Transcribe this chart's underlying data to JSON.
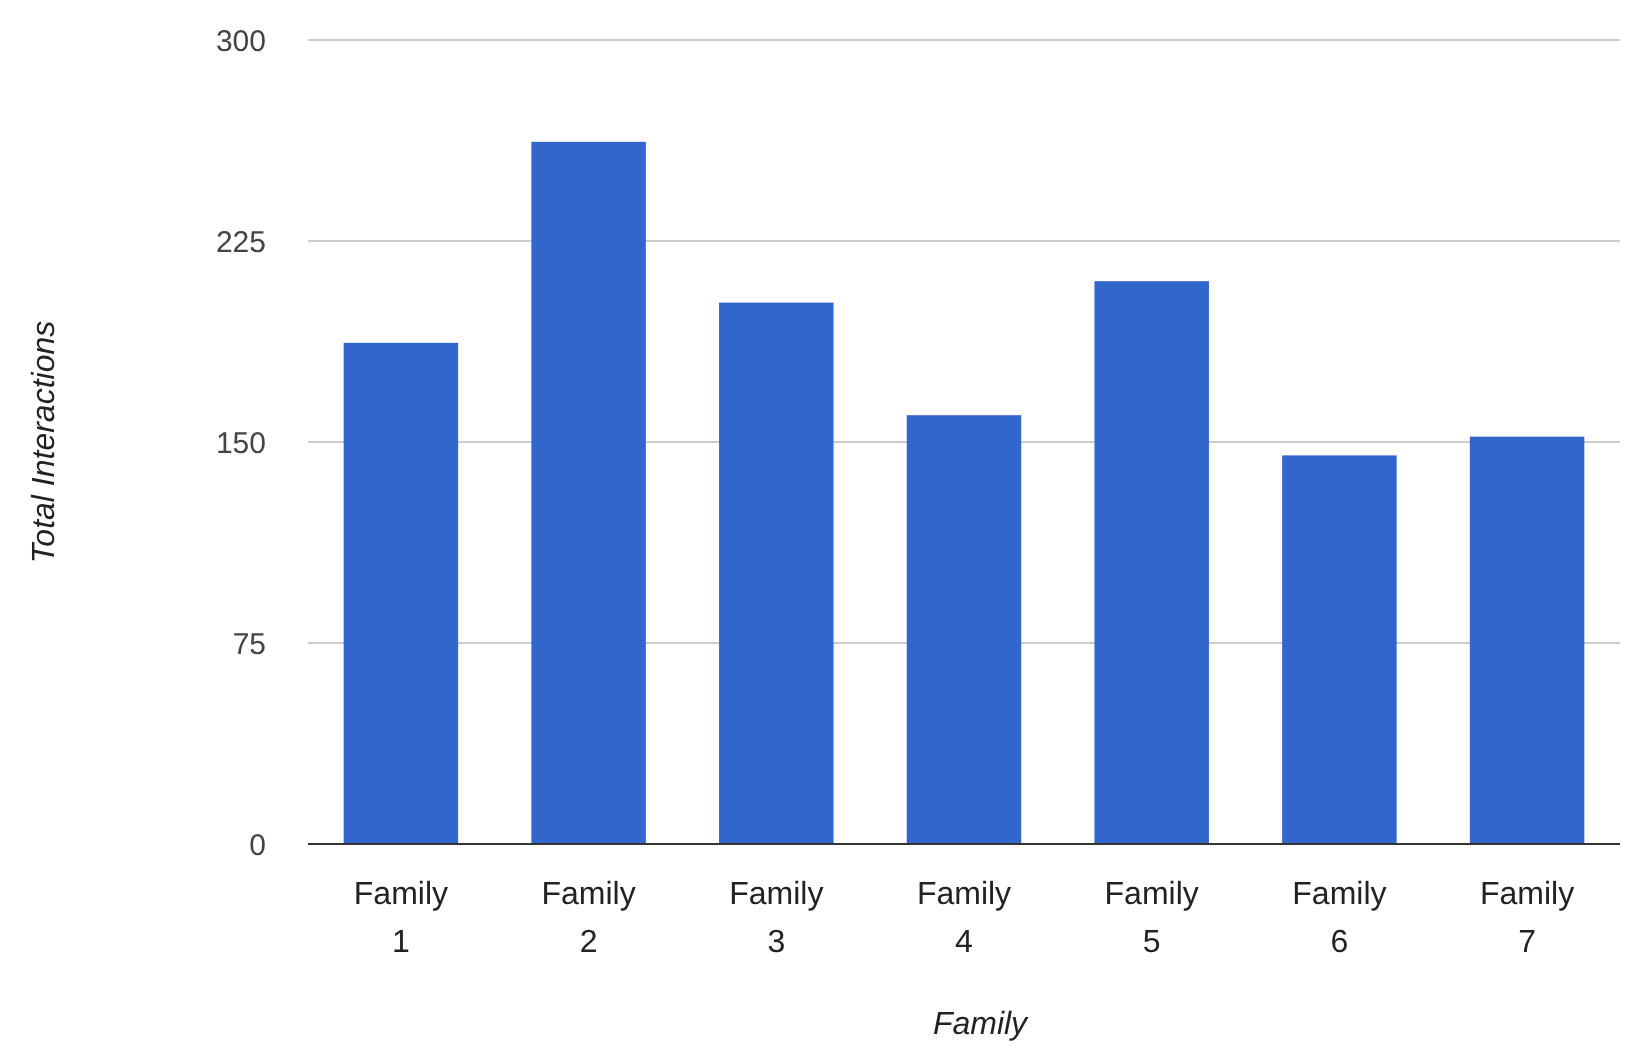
{
  "chart_data": {
    "type": "bar",
    "xlabel": "Family",
    "ylabel": "Total Interactions",
    "categories": [
      "Family 1",
      "Family 2",
      "Family 3",
      "Family 4",
      "Family 5",
      "Family 6",
      "Family 7"
    ],
    "values": [
      187,
      262,
      202,
      160,
      210,
      145,
      152
    ],
    "color": "#3366cc",
    "ylim": [
      0,
      300
    ],
    "yticks": [
      0,
      75,
      150,
      225,
      300
    ],
    "grid": "y"
  }
}
